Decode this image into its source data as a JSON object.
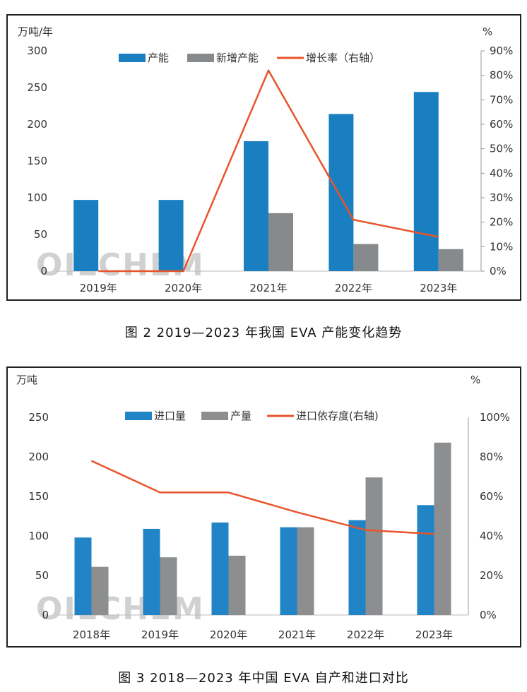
{
  "chart_data": [
    {
      "type": "bar",
      "caption": "图 2  2019—2023 年我国 EVA 产能变化趋势",
      "ylabel_left": "万吨/年",
      "ylabel_right": "%",
      "ylim_left": [
        0,
        300
      ],
      "yticks_left": [
        "0",
        "50",
        "100",
        "150",
        "200",
        "250",
        "300"
      ],
      "ylim_right": [
        0,
        90
      ],
      "yticks_right": [
        "0%",
        "10%",
        "20%",
        "30%",
        "40%",
        "50%",
        "60%",
        "70%",
        "80%",
        "90%"
      ],
      "categories": [
        "2019年",
        "2020年",
        "2021年",
        "2022年",
        "2023年"
      ],
      "series": [
        {
          "name": "产能",
          "kind": "bar",
          "axis": "left",
          "color": "#1a7fc1",
          "values": [
            97,
            97,
            177,
            214,
            244
          ]
        },
        {
          "name": "新增产能",
          "kind": "bar",
          "axis": "left",
          "color": "#878a8c",
          "values": [
            0,
            0,
            79,
            37,
            30
          ]
        },
        {
          "name": "增长率（右轴）",
          "kind": "line",
          "axis": "right",
          "color": "#e8542a",
          "values": [
            0,
            0,
            82,
            21,
            14
          ]
        }
      ],
      "watermark": "OILCHEM",
      "grid": false,
      "legend_position": "top-center"
    },
    {
      "type": "bar",
      "caption": "图 3  2018—2023 年中国 EVA 自产和进口对比",
      "ylabel_left": "万吨",
      "ylabel_right": "%",
      "ylim_left": [
        0,
        250
      ],
      "yticks_left": [
        "0",
        "50",
        "100",
        "150",
        "200",
        "250"
      ],
      "ylim_right": [
        0,
        100
      ],
      "yticks_right": [
        "0%",
        "20%",
        "40%",
        "60%",
        "80%",
        "100%"
      ],
      "categories": [
        "2018年",
        "2019年",
        "2020年",
        "2021年",
        "2022年",
        "2023年"
      ],
      "series": [
        {
          "name": "进口量",
          "kind": "bar",
          "axis": "left",
          "color": "#2184c6",
          "values": [
            98,
            109,
            117,
            111,
            120,
            139
          ]
        },
        {
          "name": "产量",
          "kind": "bar",
          "axis": "left",
          "color": "#8c8e90",
          "values": [
            61,
            73,
            75,
            111,
            174,
            218
          ]
        },
        {
          "name": "进口依存度(右轴)",
          "kind": "line",
          "axis": "right",
          "color": "#e8542a",
          "values": [
            78,
            62,
            62,
            52,
            43,
            41
          ]
        }
      ],
      "watermark": "OILCHEM",
      "grid": false,
      "legend_position": "top-center"
    }
  ]
}
